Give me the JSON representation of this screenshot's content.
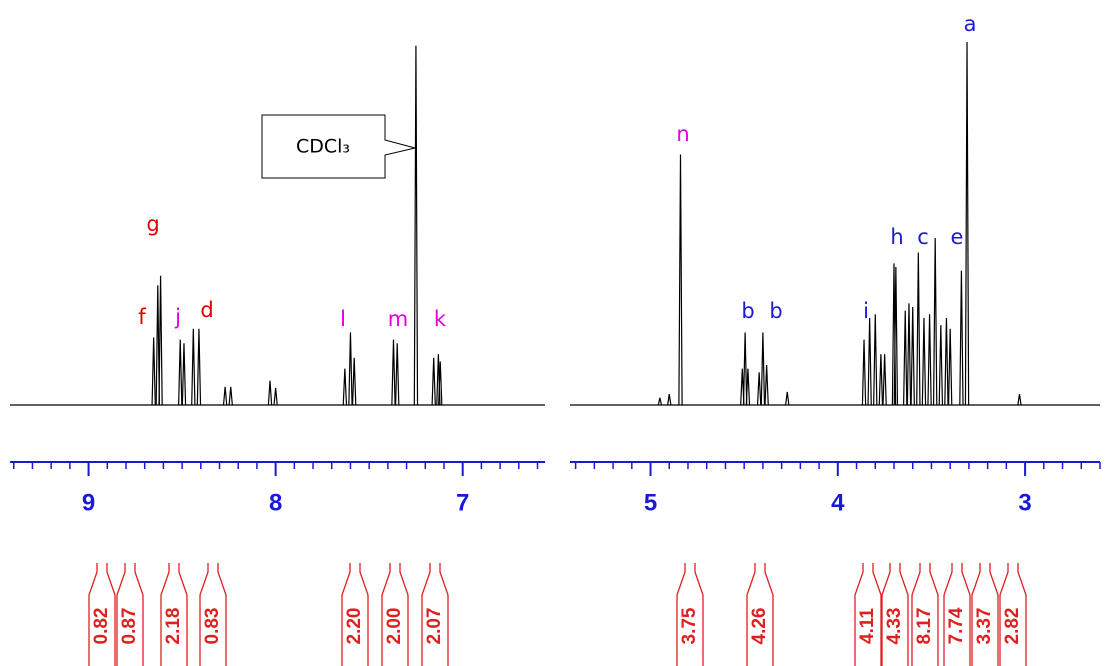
{
  "chart_data": [
    {
      "type": "nmr",
      "color": "#000000",
      "axis_color": "#1a1ad6",
      "integral_color": "#e02020",
      "xlim": [
        9.42,
        6.56
      ],
      "ylim": [
        0,
        100
      ],
      "xticks": [
        9,
        8,
        7
      ],
      "xminor_ticks": [
        9.4,
        9.3,
        9.2,
        9.1,
        8.9,
        8.8,
        8.7,
        8.6,
        8.5,
        8.4,
        8.3,
        8.2,
        8.1,
        7.9,
        7.8,
        7.7,
        7.6,
        7.5,
        7.4,
        7.3,
        7.2,
        7.1,
        6.9,
        6.8,
        6.7,
        6.6
      ],
      "x": [
        8.652,
        8.63,
        8.615,
        8.51,
        8.49,
        8.44,
        8.41,
        8.27,
        8.24,
        8.03,
        8.0,
        7.63,
        7.6,
        7.58,
        7.37,
        7.35,
        7.25,
        7.155,
        7.13,
        7.12
      ],
      "values": [
        18.6,
        33,
        35.6,
        18,
        17,
        21,
        21,
        5,
        5,
        6.7,
        4.7,
        10,
        20,
        13,
        18,
        17,
        99,
        13,
        14,
        12
      ],
      "callout": "CDCl₃",
      "peak_labels": [
        {
          "text": "g",
          "color": "#e00000"
        },
        {
          "text": "f",
          "color": "#e00000"
        },
        {
          "text": "j",
          "color": "#e000e0"
        },
        {
          "text": "d",
          "color": "#e00000"
        },
        {
          "text": "l",
          "color": "#e000e0"
        },
        {
          "text": "m",
          "color": "#e000e0"
        },
        {
          "text": "k",
          "color": "#e000e0"
        }
      ],
      "integrals": [
        "0.82",
        "0.87",
        "2.18",
        "0.83",
        "2.20",
        "2.00",
        "2.07"
      ]
    },
    {
      "type": "nmr",
      "color": "#000000",
      "axis_color": "#1a1ad6",
      "integral_color": "#e02020",
      "xlim": [
        5.43,
        2.6
      ],
      "ylim": [
        0,
        100
      ],
      "xticks": [
        5,
        4,
        3
      ],
      "xminor_ticks": [
        5.4,
        5.3,
        5.2,
        5.1,
        4.9,
        4.8,
        4.7,
        4.6,
        4.5,
        4.4,
        4.3,
        4.2,
        4.1,
        3.9,
        3.8,
        3.7,
        3.6,
        3.5,
        3.4,
        3.3,
        3.2,
        3.1,
        2.9,
        2.8,
        2.7,
        2.6
      ],
      "x": [
        4.95,
        4.9,
        4.84,
        4.51,
        4.495,
        4.48,
        4.42,
        4.4,
        4.38,
        4.27,
        3.86,
        3.83,
        3.8,
        3.77,
        3.75,
        3.7,
        3.69,
        3.64,
        3.62,
        3.6,
        3.57,
        3.54,
        3.51,
        3.48,
        3.45,
        3.42,
        3.4,
        3.34,
        3.31,
        3.03
      ],
      "values": [
        2,
        3,
        69,
        10,
        20,
        10,
        9,
        20,
        11,
        3.6,
        18,
        24,
        25,
        14,
        14,
        39,
        38,
        26,
        28,
        27,
        42,
        24,
        25,
        46,
        22,
        24,
        21,
        37,
        100,
        3
      ],
      "peak_labels": [
        {
          "text": "n",
          "color": "#e000e0"
        },
        {
          "text": "b",
          "color": "#1a1ad6"
        },
        {
          "text": "b",
          "color": "#1a1ad6"
        },
        {
          "text": "i",
          "color": "#1a1ad6"
        },
        {
          "text": "h",
          "color": "#1a1ad6"
        },
        {
          "text": "c",
          "color": "#1a1ad6"
        },
        {
          "text": "e",
          "color": "#1a1ad6"
        },
        {
          "text": "a",
          "color": "#1a1ad6"
        }
      ],
      "integrals": [
        "3.75",
        "4.26",
        "4.11",
        "4.33",
        "8.17",
        "7.74",
        "3.37",
        "2.82"
      ]
    }
  ]
}
